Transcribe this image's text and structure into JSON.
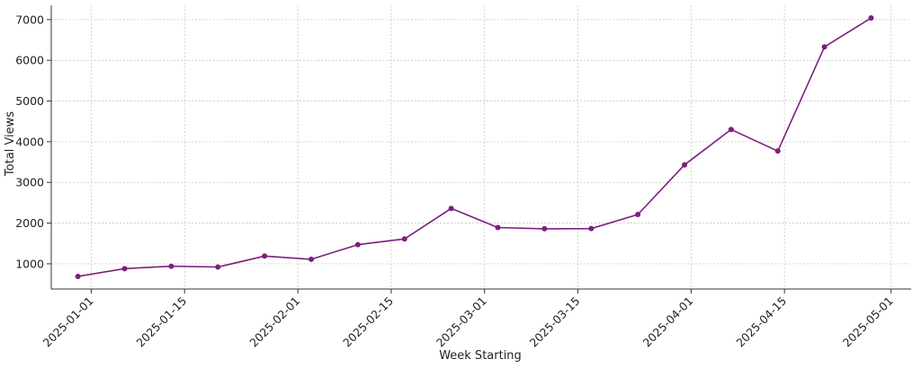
{
  "chart_data": {
    "type": "line",
    "title": "",
    "xlabel": "Week Starting",
    "ylabel": "Total Views",
    "x": [
      "2024-12-30",
      "2025-01-06",
      "2025-01-13",
      "2025-01-20",
      "2025-01-27",
      "2025-02-03",
      "2025-02-10",
      "2025-02-17",
      "2025-02-24",
      "2025-03-03",
      "2025-03-10",
      "2025-03-17",
      "2025-03-24",
      "2025-03-31",
      "2025-04-07",
      "2025-04-14",
      "2025-04-21",
      "2025-04-28"
    ],
    "series": [
      {
        "values": [
          690,
          880,
          940,
          920,
          1190,
          1110,
          1470,
          1610,
          2360,
          1890,
          1860,
          1865,
          2210,
          3430,
          4300,
          3770,
          6330,
          7040
        ]
      }
    ],
    "x_ticks": [
      "2025-01-01",
      "2025-01-15",
      "2025-02-01",
      "2025-02-15",
      "2025-03-01",
      "2025-03-15",
      "2025-04-01",
      "2025-04-15",
      "2025-05-01"
    ],
    "y_ticks": [
      1000,
      2000,
      3000,
      4000,
      5000,
      6000,
      7000
    ],
    "xlim": [
      "2024-12-26",
      "2025-05-04"
    ],
    "ylim": [
      380,
      7350
    ],
    "grid": true,
    "grid_style": "dotted",
    "line_color": "#7b1f7e",
    "grid_color": "#c8c8c8",
    "axis_color": "#333333"
  }
}
